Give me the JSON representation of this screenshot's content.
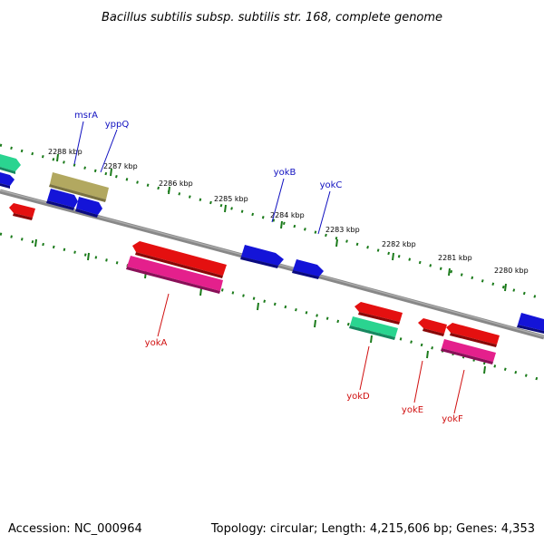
{
  "title": "Bacillus subtilis subsp. subtilis str. 168, complete genome",
  "footer": {
    "accession": "Accession: NC_000964",
    "summary": "Topology: circular; Length: 4,215,606 bp; Genes: 4,353"
  },
  "colors": {
    "backbone": "#888888",
    "ticks": "#1a7a1a",
    "label_top": "#1010c0",
    "label_bottom": "#d01010",
    "gene_blue": "#1414d8",
    "gene_red": "#e41010",
    "gene_green": "#2ad490",
    "gene_pink": "#e4208c",
    "gene_olive": "#b2a860"
  },
  "ticks": [
    {
      "label": "2288 kbp"
    },
    {
      "label": "2287 kbp"
    },
    {
      "label": "2286 kbp"
    },
    {
      "label": "2285 kbp"
    },
    {
      "label": "2284 kbp"
    },
    {
      "label": "2283 kbp"
    },
    {
      "label": "2282 kbp"
    },
    {
      "label": "2281 kbp"
    },
    {
      "label": "2280 kbp"
    }
  ],
  "gene_labels_top": [
    {
      "name": "msrA"
    },
    {
      "name": "yppQ"
    },
    {
      "name": "yokB"
    },
    {
      "name": "yokC"
    }
  ],
  "gene_labels_bottom": [
    {
      "name": "yokA"
    },
    {
      "name": "yokD"
    },
    {
      "name": "yokE"
    },
    {
      "name": "yokF"
    }
  ]
}
